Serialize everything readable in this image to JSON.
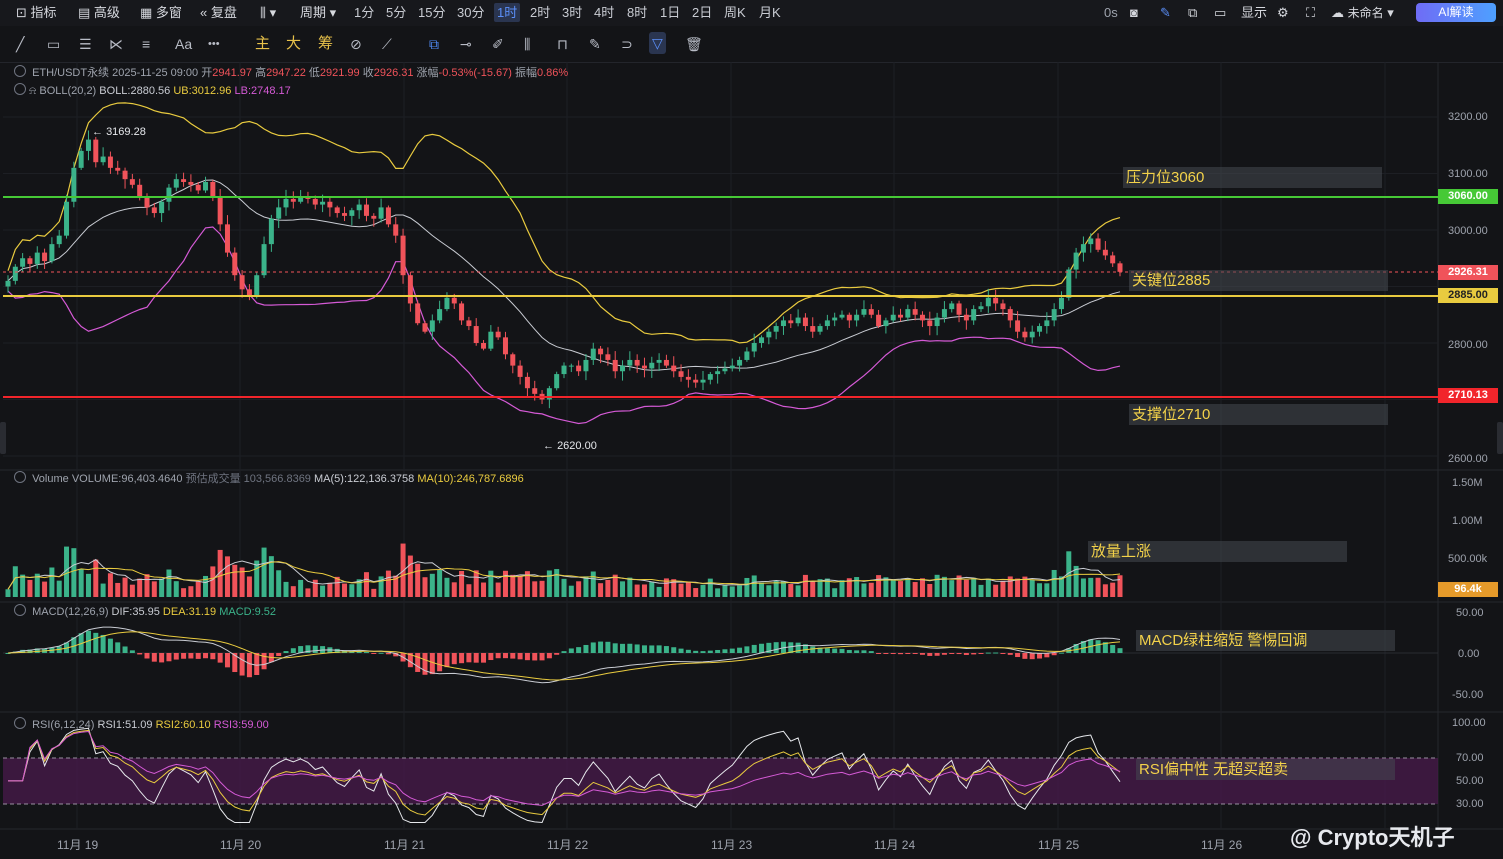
{
  "topbar": {
    "indicators": "指标",
    "advanced": "高级",
    "multi_window": "多窗",
    "replay": "复盘",
    "period": "周期",
    "timeframes": [
      "1分",
      "5分",
      "15分",
      "30分",
      "1时",
      "2时",
      "3时",
      "4时",
      "8时",
      "1日",
      "2日",
      "周K",
      "月K"
    ],
    "active_timeframe": "1时",
    "latency": "0s",
    "display": "显示",
    "layout_name": "未命名",
    "ai_button": "AI解读"
  },
  "toolbar": {
    "text_tool": "Aa",
    "more": "•••",
    "main": "主",
    "big": "大",
    "chips": "筹"
  },
  "price_legend": {
    "symbol": "ETH/USDT永续",
    "datetime": "2025-11-25 09:00",
    "open_label": "开",
    "open": "2941.97",
    "high_label": "高",
    "high": "2947.22",
    "low_label": "低",
    "low": "2921.99",
    "close_label": "收",
    "close": "2926.31",
    "change_label": "涨幅",
    "change": "-0.53%(-15.67)",
    "amp_label": "振幅",
    "amp": "0.86%"
  },
  "boll_legend": {
    "name": "BOLL(20,2)",
    "boll": "BOLL:2880.56",
    "ub": "UB:3012.96",
    "lb": "LB:2748.17"
  },
  "volume_legend": {
    "name": "Volume",
    "volume": "VOLUME:96,403.4640",
    "est": "预估成交量 103,566.8369",
    "ma5": "MA(5):122,136.3758",
    "ma10": "MA(10):246,787.6896"
  },
  "macd_legend": {
    "name": "MACD(12,26,9)",
    "dif": "DIF:35.95",
    "dea": "DEA:31.19",
    "macd": "MACD:9.52"
  },
  "rsi_legend": {
    "name": "RSI(6,12,24)",
    "rsi1": "RSI1:51.09",
    "rsi2": "RSI2:60.10",
    "rsi3": "RSI3:59.00"
  },
  "price_axis": [
    "3200.00",
    "3100.00",
    "3000.00",
    "2800.00",
    "2600.00"
  ],
  "price_tags": {
    "resistance": "3060.00",
    "last": "2926.31",
    "key": "2885.00",
    "support": "2710.13"
  },
  "volume_axis": [
    "1.50M",
    "1.00M",
    "500.00k"
  ],
  "volume_tag": "96.4k",
  "macd_axis": [
    "50.00",
    "0.00",
    "-50.00"
  ],
  "rsi_axis": [
    "100.00",
    "70.00",
    "50.00",
    "30.00"
  ],
  "markers": {
    "high": "3169.28",
    "low": "2620.00"
  },
  "annotations": {
    "resistance": "压力位3060",
    "key": "关键位2885",
    "support": "支撑位2710",
    "volume": "放量上涨",
    "macd": "MACD绿柱缩短 警惕回调",
    "rsi": "RSI偏中性 无超买超卖"
  },
  "x_axis": [
    "11月 19",
    "11月 20",
    "11月 21",
    "11月 22",
    "11月 23",
    "11月 24",
    "11月 25",
    "11月 26"
  ],
  "watermark": "@ Crypto天机子",
  "colors": {
    "up": "#3bb38a",
    "down": "#f0535a",
    "accent": "#5b8ff9",
    "resistance": "#46c936",
    "key": "#e9cb3f",
    "support": "#f2252b",
    "rsi_band": "#4a1a4c"
  },
  "chart_data": {
    "type": "candlestick",
    "symbol": "ETH/USDT永续",
    "timeframe": "1时",
    "ylim": [
      2580,
      3240
    ],
    "horizontal_lines": [
      3060,
      2885,
      2710.13
    ],
    "close": [
      2910,
      2935,
      2950,
      2940,
      2960,
      2945,
      2975,
      2990,
      3050,
      3110,
      3140,
      3160,
      3120,
      3130,
      3110,
      3105,
      3090,
      3080,
      3060,
      3040,
      3030,
      3050,
      3075,
      3090,
      3085,
      3080,
      3070,
      3085,
      3060,
      3010,
      2960,
      2920,
      2895,
      2885,
      2920,
      2975,
      3020,
      3040,
      3055,
      3050,
      3060,
      3055,
      3045,
      3050,
      3040,
      3030,
      3025,
      3035,
      3045,
      3025,
      3020,
      3040,
      3010,
      2990,
      2920,
      2870,
      2835,
      2820,
      2840,
      2860,
      2880,
      2870,
      2840,
      2830,
      2800,
      2790,
      2820,
      2810,
      2780,
      2760,
      2740,
      2720,
      2710,
      2700,
      2720,
      2745,
      2760,
      2760,
      2750,
      2770,
      2790,
      2780,
      2770,
      2750,
      2760,
      2770,
      2760,
      2755,
      2765,
      2770,
      2760,
      2750,
      2740,
      2735,
      2730,
      2735,
      2745,
      2750,
      2755,
      2760,
      2770,
      2785,
      2800,
      2810,
      2820,
      2830,
      2840,
      2835,
      2845,
      2830,
      2820,
      2830,
      2840,
      2845,
      2850,
      2840,
      2850,
      2860,
      2850,
      2830,
      2840,
      2850,
      2845,
      2860,
      2850,
      2840,
      2830,
      2845,
      2860,
      2870,
      2850,
      2840,
      2860,
      2865,
      2880,
      2870,
      2860,
      2840,
      2820,
      2810,
      2820,
      2830,
      2840,
      2860,
      2880,
      2930,
      2960,
      2975,
      2985,
      2965,
      2955,
      2941,
      2926
    ],
    "boll_ub_last": 3012.96,
    "boll_mid_last": 2880.56,
    "boll_lb_last": 2748.17
  }
}
